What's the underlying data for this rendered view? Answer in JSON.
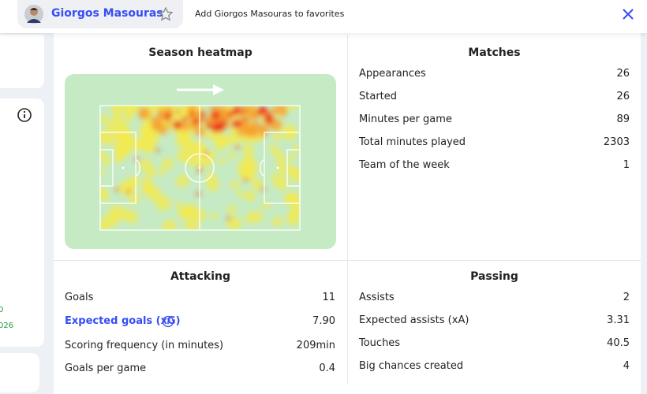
{
  "header": {
    "player_name": "Giorgos Masouras",
    "favorite_action": "Add Giorgos Masouras to favorites"
  },
  "left_panel": {
    "texts": [
      "0",
      "026"
    ]
  },
  "heatmap": {
    "title": "Season heatmap"
  },
  "matches": {
    "title": "Matches",
    "rows": [
      [
        "Appearances",
        "26"
      ],
      [
        "Started",
        "26"
      ],
      [
        "Minutes per game",
        "89"
      ],
      [
        "Total minutes played",
        "2303"
      ],
      [
        "Team of the week",
        "1"
      ]
    ]
  },
  "attacking": {
    "title": "Attacking",
    "rows": [
      [
        "Goals",
        "11"
      ],
      [
        "Expected goals (xG)",
        "7.90"
      ],
      [
        "Scoring frequency (in minutes)",
        "209min"
      ],
      [
        "Goals per game",
        "0.4"
      ]
    ]
  },
  "passing": {
    "title": "Passing",
    "rows": [
      [
        "Assists",
        "2"
      ],
      [
        "Expected assists (xA)",
        "3.31"
      ],
      [
        "Touches",
        "40.5"
      ],
      [
        "Big chances created",
        "4"
      ]
    ]
  }
}
